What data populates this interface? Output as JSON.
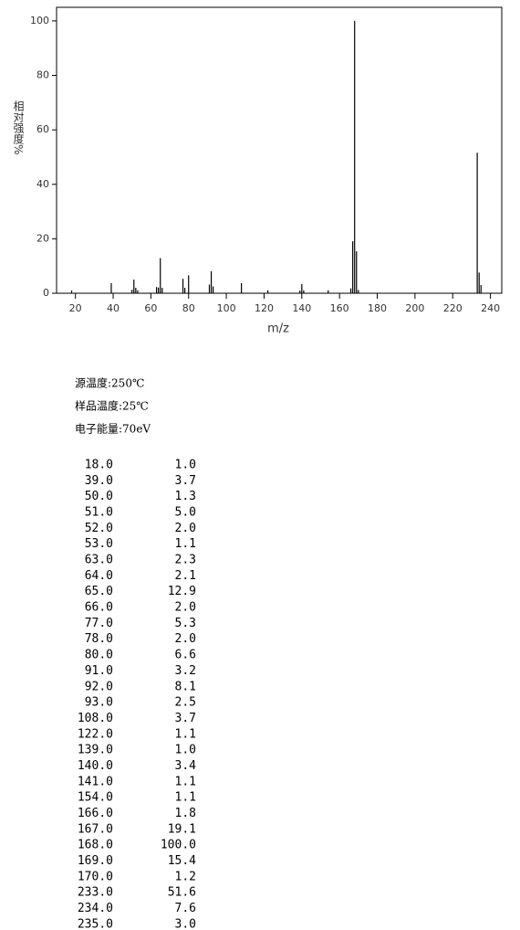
{
  "chart_data": {
    "type": "bar",
    "x_label": "m/z",
    "y_label": "相对强度%",
    "x": [
      18,
      39,
      50,
      51,
      52,
      53,
      63,
      64,
      65,
      66,
      77,
      78,
      80,
      91,
      92,
      93,
      108,
      122,
      139,
      140,
      141,
      154,
      166,
      167,
      168,
      169,
      170,
      233,
      234,
      235
    ],
    "values": [
      1.0,
      3.7,
      1.3,
      5.0,
      2.0,
      1.1,
      2.3,
      2.1,
      12.9,
      2.0,
      5.3,
      2.0,
      6.6,
      3.2,
      8.1,
      2.5,
      3.7,
      1.1,
      1.0,
      3.4,
      1.1,
      1.1,
      1.8,
      19.1,
      100.0,
      15.4,
      1.2,
      51.6,
      7.6,
      3.0
    ],
    "color": "#000000",
    "xlim": [
      10,
      246
    ],
    "xticks": [
      20,
      40,
      60,
      80,
      100,
      120,
      140,
      160,
      180,
      200,
      220,
      240
    ],
    "ylim": [
      0,
      105
    ],
    "yticks": [
      0,
      20,
      40,
      60,
      80,
      100
    ]
  },
  "conditions": [
    "源温度:250℃",
    "样品温度:25℃",
    "电子能量:70eV"
  ],
  "peaks": [
    [
      "18.0",
      "1.0"
    ],
    [
      "39.0",
      "3.7"
    ],
    [
      "50.0",
      "1.3"
    ],
    [
      "51.0",
      "5.0"
    ],
    [
      "52.0",
      "2.0"
    ],
    [
      "53.0",
      "1.1"
    ],
    [
      "63.0",
      "2.3"
    ],
    [
      "64.0",
      "2.1"
    ],
    [
      "65.0",
      "12.9"
    ],
    [
      "66.0",
      "2.0"
    ],
    [
      "77.0",
      "5.3"
    ],
    [
      "78.0",
      "2.0"
    ],
    [
      "80.0",
      "6.6"
    ],
    [
      "91.0",
      "3.2"
    ],
    [
      "92.0",
      "8.1"
    ],
    [
      "93.0",
      "2.5"
    ],
    [
      "108.0",
      "3.7"
    ],
    [
      "122.0",
      "1.1"
    ],
    [
      "139.0",
      "1.0"
    ],
    [
      "140.0",
      "3.4"
    ],
    [
      "141.0",
      "1.1"
    ],
    [
      "154.0",
      "1.1"
    ],
    [
      "166.0",
      "1.8"
    ],
    [
      "167.0",
      "19.1"
    ],
    [
      "168.0",
      "100.0"
    ],
    [
      "169.0",
      "15.4"
    ],
    [
      "170.0",
      "1.2"
    ],
    [
      "233.0",
      "51.6"
    ],
    [
      "234.0",
      "7.6"
    ],
    [
      "235.0",
      "3.0"
    ]
  ]
}
